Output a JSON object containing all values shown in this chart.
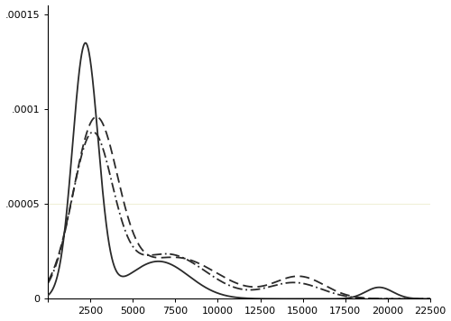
{
  "title": "",
  "xlabel": "",
  "ylabel": "",
  "xlim": [
    0,
    22500
  ],
  "ylim": [
    0,
    0.000155
  ],
  "yticks": [
    0,
    5e-05,
    0.0001,
    0.00015
  ],
  "ytick_labels": [
    "0",
    ".00005",
    ".0001",
    ".00015"
  ],
  "xticks": [
    0,
    2500,
    5000,
    7500,
    10000,
    12500,
    15000,
    17500,
    20000,
    22500
  ],
  "line_color": "#2a2a2a",
  "figsize": [
    5.0,
    3.56
  ],
  "dpi": 100,
  "background_color": "#ffffff",
  "line_width": 1.3,
  "hline_color": "#f0f0d8",
  "hline_y": 5e-05
}
